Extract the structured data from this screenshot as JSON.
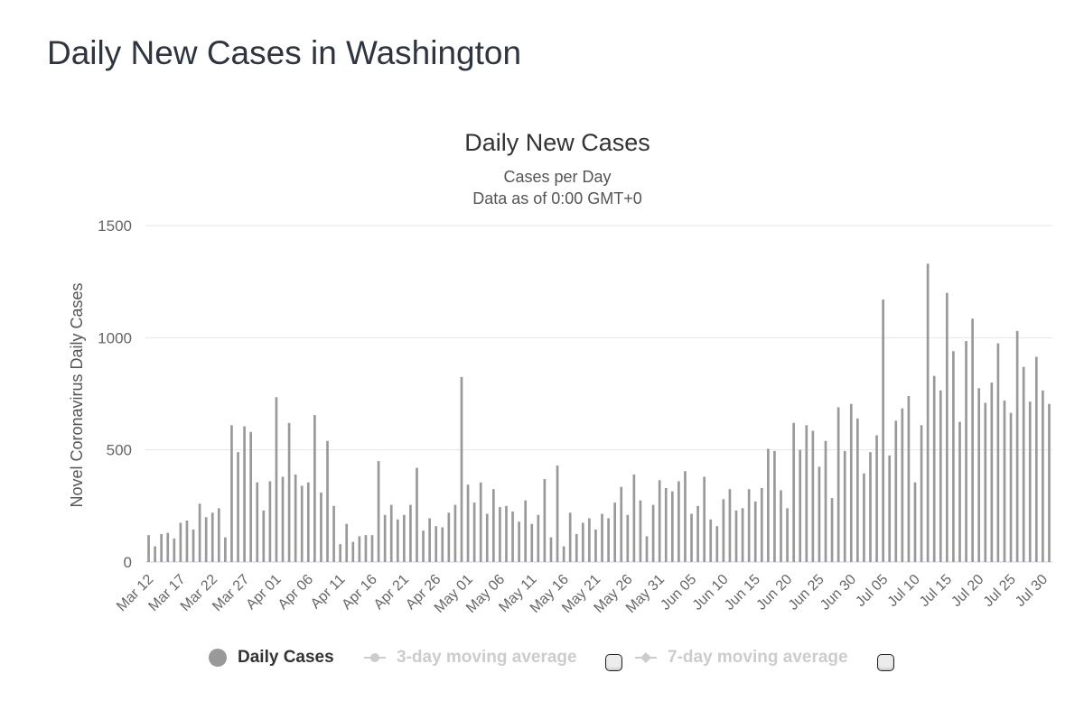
{
  "page": {
    "title": "Daily New Cases in Washington"
  },
  "chart_data": {
    "type": "bar",
    "title": "Daily New Cases",
    "subtitle": "Cases per Day",
    "subtitle2": "Data as of 0:00 GMT+0",
    "ylabel": "Novel Coronavirus Daily Cases",
    "xlabel": "",
    "ylim": [
      0,
      1500
    ],
    "yticks": [
      0,
      500,
      1000,
      1500
    ],
    "grid": true,
    "start_date": "2020-03-12",
    "xtick_labels": [
      "Mar 12",
      "Mar 17",
      "Mar 22",
      "Mar 27",
      "Apr 01",
      "Apr 06",
      "Apr 11",
      "Apr 16",
      "Apr 21",
      "Apr 26",
      "May 01",
      "May 06",
      "May 11",
      "May 16",
      "May 21",
      "May 26",
      "May 31",
      "Jun 05",
      "Jun 10",
      "Jun 15",
      "Jun 20",
      "Jun 25",
      "Jun 30",
      "Jul 05",
      "Jul 10",
      "Jul 15",
      "Jul 20",
      "Jul 25",
      "Jul 30"
    ],
    "series": [
      {
        "name": "Daily Cases",
        "color": "#999999",
        "values": [
          120,
          70,
          125,
          130,
          105,
          175,
          185,
          145,
          260,
          200,
          220,
          240,
          110,
          610,
          490,
          605,
          580,
          355,
          230,
          360,
          735,
          380,
          620,
          390,
          340,
          355,
          655,
          310,
          540,
          250,
          80,
          170,
          90,
          115,
          120,
          120,
          450,
          210,
          255,
          190,
          210,
          255,
          420,
          140,
          195,
          160,
          155,
          220,
          255,
          825,
          345,
          265,
          355,
          215,
          325,
          245,
          250,
          225,
          180,
          275,
          170,
          210,
          370,
          110,
          430,
          70,
          220,
          125,
          175,
          195,
          145,
          215,
          195,
          265,
          335,
          210,
          390,
          275,
          115,
          255,
          365,
          330,
          315,
          360,
          405,
          215,
          250,
          380,
          190,
          160,
          280,
          325,
          230,
          240,
          325,
          270,
          330,
          505,
          495,
          320,
          240,
          620,
          500,
          610,
          585,
          425,
          540,
          285,
          690,
          495,
          705,
          640,
          395,
          490,
          565,
          1170,
          475,
          630,
          685,
          740,
          355,
          610,
          1330,
          830,
          765,
          1200,
          940,
          625,
          985,
          1085,
          775,
          710,
          800,
          975,
          720,
          665,
          1030,
          870,
          715,
          915,
          765,
          705
        ]
      }
    ],
    "legend": {
      "placement": "bottom",
      "items": [
        {
          "label": "Daily Cases",
          "active": true,
          "marker": "circle",
          "color": "#999999"
        },
        {
          "label": "3-day moving average",
          "active": false,
          "marker": "line-dot",
          "color": "#cccccc"
        },
        {
          "label": "7-day moving average",
          "active": false,
          "marker": "line-diamond",
          "color": "#cccccc"
        }
      ]
    }
  }
}
